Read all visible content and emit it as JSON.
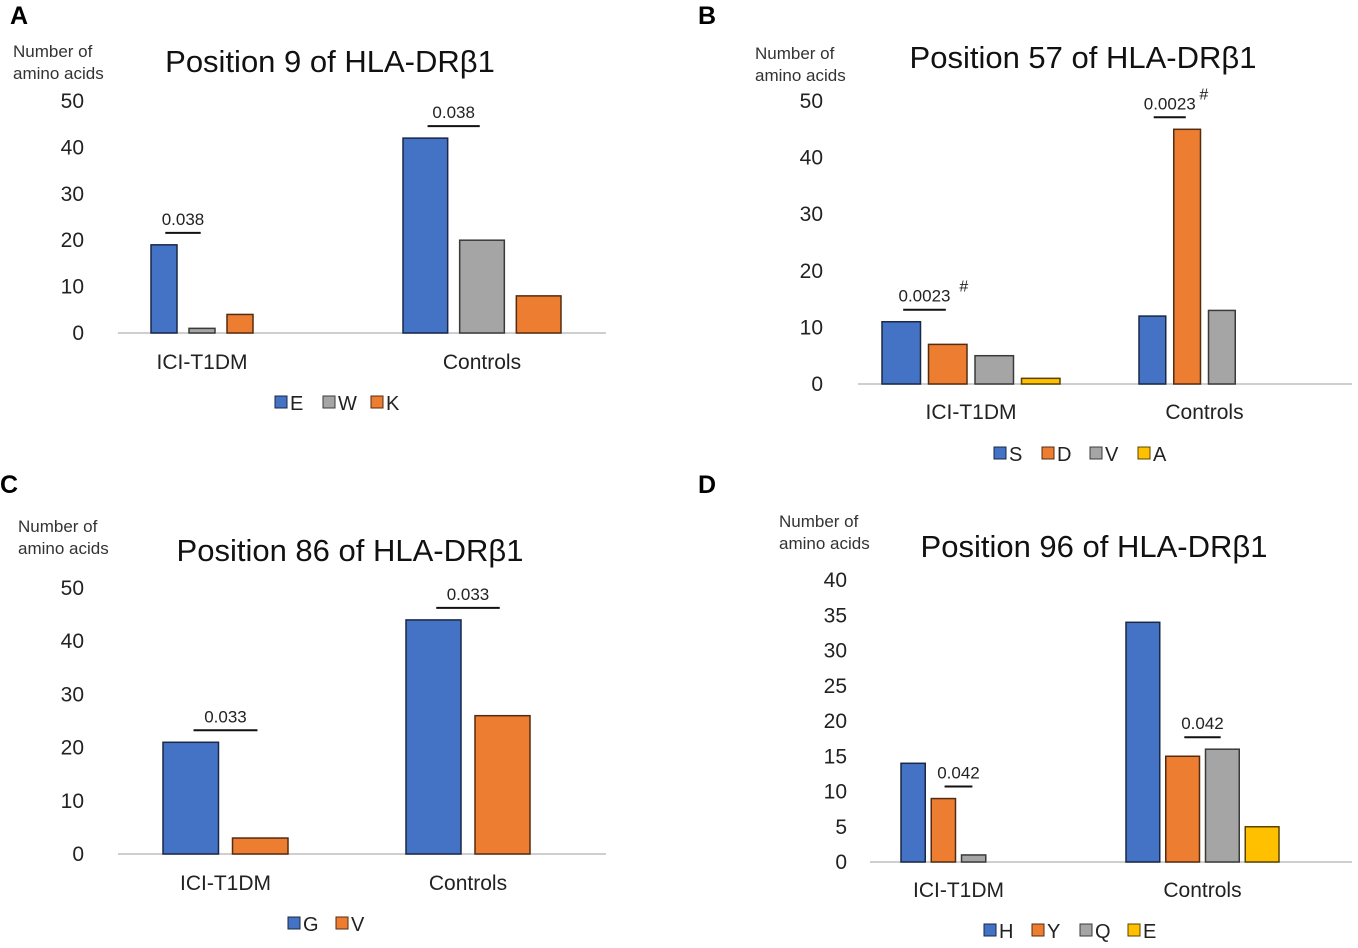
{
  "chart_data": [
    {
      "panel": "A",
      "type": "bar",
      "title": "Position 9 of HLA-DRβ1",
      "ylabel": "Number of amino acids",
      "ylabel_lines": [
        "Number of",
        "amino acids"
      ],
      "categories": [
        "ICI-T1DM",
        "Controls"
      ],
      "series": [
        {
          "name": "E",
          "color": "#4472c4",
          "values": [
            19,
            42
          ]
        },
        {
          "name": "W",
          "color": "#a5a5a5",
          "values": [
            1,
            20
          ]
        },
        {
          "name": "K",
          "color": "#ed7d31",
          "values": [
            4,
            8
          ]
        }
      ],
      "ylim": [
        0,
        50
      ],
      "yticks": [
        0,
        10,
        20,
        30,
        40,
        50
      ],
      "annotations": [
        {
          "category": 0,
          "series_span": [
            0,
            1
          ],
          "label": "0.038",
          "mark": ""
        },
        {
          "category": 1,
          "series_span": [
            0,
            1
          ],
          "label": "0.038",
          "mark": ""
        }
      ],
      "legend": "bottom",
      "grid": false
    },
    {
      "panel": "B",
      "type": "bar",
      "title": "Position 57 of HLA-DRβ1",
      "ylabel": "Number of amino acids",
      "ylabel_lines": [
        "Number of",
        "amino acids"
      ],
      "categories": [
        "ICI-T1DM",
        "Controls"
      ],
      "series": [
        {
          "name": "S",
          "color": "#4472c4",
          "values": [
            11,
            12
          ]
        },
        {
          "name": "D",
          "color": "#ed7d31",
          "values": [
            7,
            45
          ]
        },
        {
          "name": "V",
          "color": "#a5a5a5",
          "values": [
            5,
            13
          ]
        },
        {
          "name": "A",
          "color": "#ffc000",
          "values": [
            1,
            0
          ]
        }
      ],
      "ylim": [
        0,
        50
      ],
      "yticks": [
        0,
        10,
        20,
        30,
        40,
        50
      ],
      "annotations": [
        {
          "category": 0,
          "series_span": [
            0,
            1
          ],
          "label": "0.0023",
          "mark": "#"
        },
        {
          "category": 1,
          "series_span": [
            0,
            1
          ],
          "label": "0.0023",
          "mark": "#"
        }
      ],
      "legend": "bottom",
      "grid": false
    },
    {
      "panel": "C",
      "type": "bar",
      "title": "Position 86 of HLA-DRβ1",
      "ylabel": "Number of amino acids",
      "ylabel_lines": [
        "Number of",
        "amino acids"
      ],
      "categories": [
        "ICI-T1DM",
        "Controls"
      ],
      "series": [
        {
          "name": "G",
          "color": "#4472c4",
          "values": [
            21,
            44
          ]
        },
        {
          "name": "V",
          "color": "#ed7d31",
          "values": [
            3,
            26
          ]
        }
      ],
      "ylim": [
        0,
        50
      ],
      "yticks": [
        0,
        10,
        20,
        30,
        40,
        50
      ],
      "annotations": [
        {
          "category": 0,
          "series_span": [
            0,
            1
          ],
          "label": "0.033",
          "mark": ""
        },
        {
          "category": 1,
          "series_span": [
            0,
            1
          ],
          "label": "0.033",
          "mark": ""
        }
      ],
      "legend": "bottom",
      "grid": false
    },
    {
      "panel": "D",
      "type": "bar",
      "title": "Position 96 of HLA-DRβ1",
      "ylabel": "Number of amino acids",
      "ylabel_lines": [
        "Number of",
        "amino acids"
      ],
      "categories": [
        "ICI-T1DM",
        "Controls"
      ],
      "series": [
        {
          "name": "H",
          "color": "#4472c4",
          "values": [
            14,
            34
          ]
        },
        {
          "name": "Y",
          "color": "#ed7d31",
          "values": [
            9,
            15
          ]
        },
        {
          "name": "Q",
          "color": "#a5a5a5",
          "values": [
            1,
            16
          ]
        },
        {
          "name": "E",
          "color": "#ffc000",
          "values": [
            0,
            5
          ]
        }
      ],
      "ylim": [
        0,
        40
      ],
      "yticks": [
        0,
        5,
        10,
        15,
        20,
        25,
        30,
        35,
        40
      ],
      "annotations": [
        {
          "category": 0,
          "series_span": [
            1,
            2
          ],
          "label": "0.042",
          "mark": ""
        },
        {
          "category": 1,
          "series_span": [
            1,
            2
          ],
          "label": "0.042",
          "mark": ""
        }
      ],
      "legend": "bottom",
      "grid": false
    }
  ]
}
